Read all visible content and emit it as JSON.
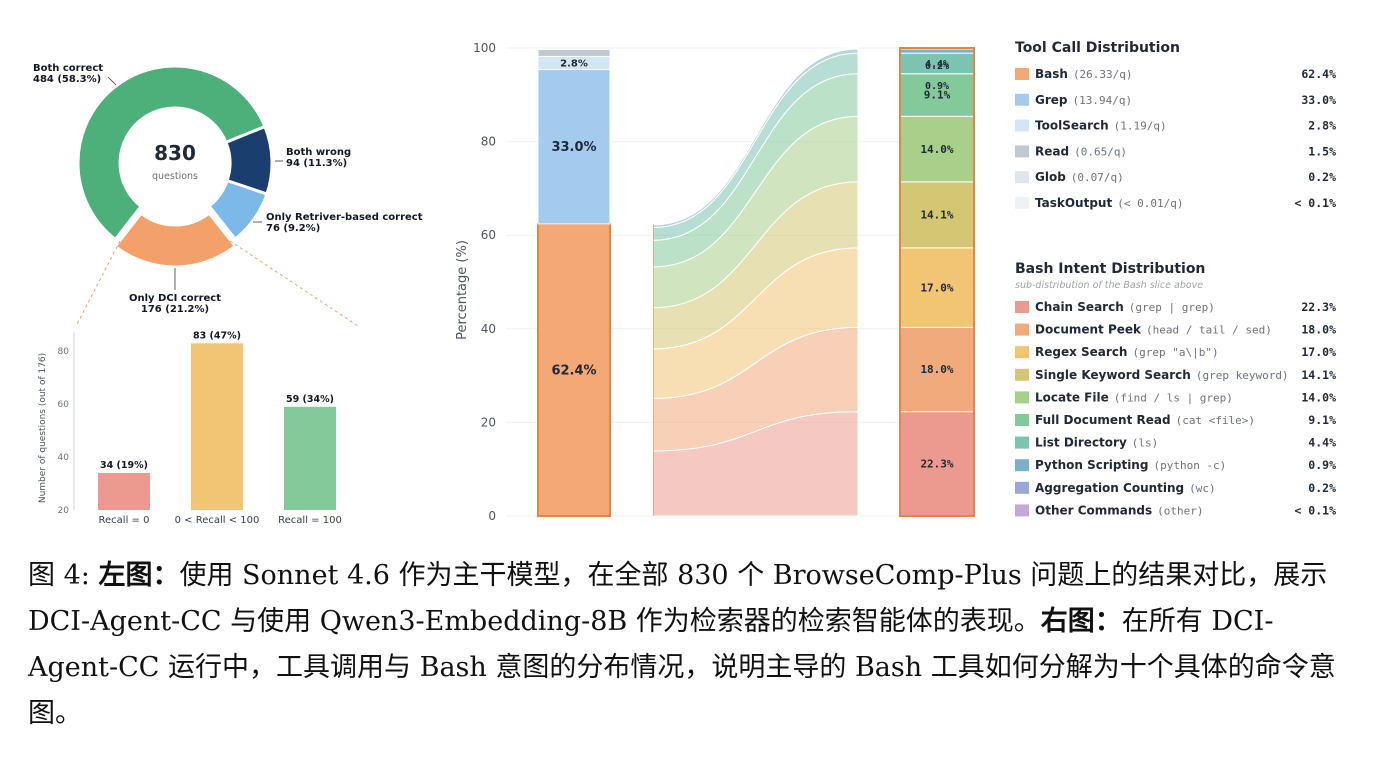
{
  "chart_data": [
    {
      "type": "pie",
      "center_value": "830",
      "center_label": "questions",
      "slices": [
        {
          "name": "Both correct",
          "count": 484,
          "pct": 58.3,
          "label": "484 (58.3%)",
          "color": "#4daf79"
        },
        {
          "name": "Both wrong",
          "count": 94,
          "pct": 11.3,
          "label": "94 (11.3%)",
          "color": "#1a3e6e"
        },
        {
          "name": "Only Retriver-based correct",
          "count": 76,
          "pct": 9.2,
          "label": "76 (9.2%)",
          "color": "#7cb8e8"
        },
        {
          "name": "Only DCI correct",
          "count": 176,
          "pct": 21.2,
          "label": "176 (21.2%)",
          "color": "#f3a06a"
        }
      ]
    },
    {
      "type": "bar",
      "ylabel": "Number of questions (out of 176)",
      "ylim": [
        20,
        85
      ],
      "yticks": [
        20,
        40,
        60,
        80
      ],
      "categories": [
        "Recall = 0",
        "0 < Recall < 100",
        "Recall = 100"
      ],
      "values": [
        34,
        83,
        59
      ],
      "labels": [
        "34 (19%)",
        "83 (47%)",
        "59 (34%)"
      ],
      "colors": [
        "#ec9a90",
        "#f2c574",
        "#83c99a"
      ]
    },
    {
      "type": "bar",
      "ylabel": "Percentage (%)",
      "ylim": [
        0,
        100
      ],
      "yticks": [
        0,
        20,
        40,
        60,
        80,
        100
      ],
      "tool_stack": [
        {
          "name": "Bash",
          "value": 62.4,
          "label": "62.4%",
          "color": "#f3a876",
          "edge": "#e0864a"
        },
        {
          "name": "Grep",
          "value": 33.0,
          "label": "33.0%",
          "color": "#a4cbed",
          "edge": "#a4cbed"
        },
        {
          "name": "ToolSearch",
          "value": 2.8,
          "label": "2.8%",
          "color": "#d1e6f7",
          "edge": "#d1e6f7"
        },
        {
          "name": "Read",
          "value": 1.5,
          "label": "",
          "color": "#c0c8d2",
          "edge": "#c0c8d2"
        }
      ],
      "intent_stack": [
        {
          "name": "Chain Search",
          "value": 22.3,
          "label": "22.3%",
          "color": "#ec9a90"
        },
        {
          "name": "Document Peek",
          "value": 18.0,
          "label": "18.0%",
          "color": "#f0aa7c"
        },
        {
          "name": "Regex Search",
          "value": 17.0,
          "label": "17.0%",
          "color": "#f2c574"
        },
        {
          "name": "Single Keyword Search",
          "value": 14.1,
          "label": "14.1%",
          "color": "#d3c774"
        },
        {
          "name": "Locate File",
          "value": 14.0,
          "label": "14.0%",
          "color": "#a9d08a"
        },
        {
          "name": "Full Document Read",
          "value": 9.1,
          "label": "9.1%",
          "color": "#83c99a"
        },
        {
          "name": "List Directory",
          "value": 4.4,
          "label": "4.4%",
          "color": "#7cc3b0"
        },
        {
          "name": "Python Scripting",
          "value": 0.9,
          "label": "0.9%",
          "color": "#7ab0cc"
        },
        {
          "name": "Aggregation Counting",
          "value": 0.2,
          "label": "0.2%",
          "color": "#9ba7d6"
        },
        {
          "name": "Other Commands",
          "value": 0.1,
          "label": "",
          "color": "#c4a8d8"
        }
      ]
    }
  ],
  "legend_tools": {
    "title": "Tool Call Distribution",
    "items": [
      {
        "name": "Bash",
        "detail": "(26.33/q)",
        "value": "62.4%",
        "color": "#f3a876"
      },
      {
        "name": "Grep",
        "detail": "(13.94/q)",
        "value": "33.0%",
        "color": "#a4cbed"
      },
      {
        "name": "ToolSearch",
        "detail": "(1.19/q)",
        "value": "2.8%",
        "color": "#d1e6f7"
      },
      {
        "name": "Read",
        "detail": "(0.65/q)",
        "value": "1.5%",
        "color": "#c0c8d2"
      },
      {
        "name": "Glob",
        "detail": "(0.07/q)",
        "value": "0.2%",
        "color": "#dde5ee"
      },
      {
        "name": "TaskOutput",
        "detail": "(< 0.01/q)",
        "value": "< 0.1%",
        "color": "#eef1f6"
      }
    ]
  },
  "legend_intents": {
    "title": "Bash Intent Distribution",
    "subtitle": "sub-distribution of the Bash slice above",
    "items": [
      {
        "name": "Chain Search",
        "detail": "(grep | grep)",
        "value": "22.3%",
        "color": "#ec9a90"
      },
      {
        "name": "Document Peek",
        "detail": "(head / tail / sed)",
        "value": "18.0%",
        "color": "#f0aa7c"
      },
      {
        "name": "Regex Search",
        "detail": "(grep \"a\\|b\")",
        "value": "17.0%",
        "color": "#f2c574"
      },
      {
        "name": "Single Keyword Search",
        "detail": "(grep keyword)",
        "value": "14.1%",
        "color": "#d3c774"
      },
      {
        "name": "Locate File",
        "detail": "(find / ls | grep)",
        "value": "14.0%",
        "color": "#a9d08a"
      },
      {
        "name": "Full Document Read",
        "detail": "(cat <file>)",
        "value": "9.1%",
        "color": "#83c99a"
      },
      {
        "name": "List Directory",
        "detail": "(ls)",
        "value": "4.4%",
        "color": "#7cc3b0"
      },
      {
        "name": "Python Scripting",
        "detail": "(python -c)",
        "value": "0.9%",
        "color": "#7ab0cc"
      },
      {
        "name": "Aggregation Counting",
        "detail": "(wc)",
        "value": "0.2%",
        "color": "#9ba7d6"
      },
      {
        "name": "Other Commands",
        "detail": "(other)",
        "value": "< 0.1%",
        "color": "#c4a8d8"
      }
    ]
  },
  "caption": {
    "fig_label": "图 4: ",
    "left_label": "左图：",
    "left_text": "使用 Sonnet 4.6 作为主干模型，在全部 830 个 BrowseComp-Plus 问题上的结果对比，展示 DCI-Agent-CC 与使用 Qwen3-Embedding-8B 作为检索器的检索智能体的表现。",
    "right_label": "右图：",
    "right_text": "在所有 DCI-Agent-CC 运行中，工具调用与 Bash 意图的分布情况，说明主导的 Bash 工具如何分解为十个具体的命令意图。"
  }
}
